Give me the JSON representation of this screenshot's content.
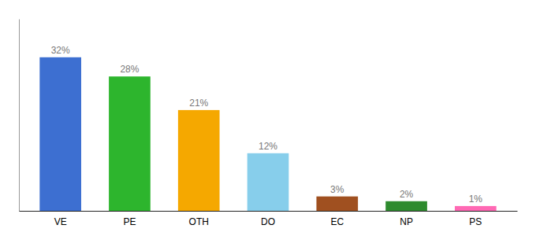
{
  "chart_data": {
    "type": "bar",
    "categories": [
      "VE",
      "PE",
      "OTH",
      "DO",
      "EC",
      "NP",
      "PS"
    ],
    "values": [
      32,
      28,
      21,
      12,
      3,
      2,
      1
    ],
    "colors": [
      "#3d6fd1",
      "#2db52d",
      "#f5a800",
      "#87ceeb",
      "#a05020",
      "#2e8b2e",
      "#ff69b4"
    ],
    "ylim": [
      0,
      40
    ],
    "data_labels": true,
    "value_labels": [
      "32%",
      "28%",
      "21%",
      "12%",
      "3%",
      "2%",
      "1%"
    ],
    "tick_labels": "x"
  }
}
